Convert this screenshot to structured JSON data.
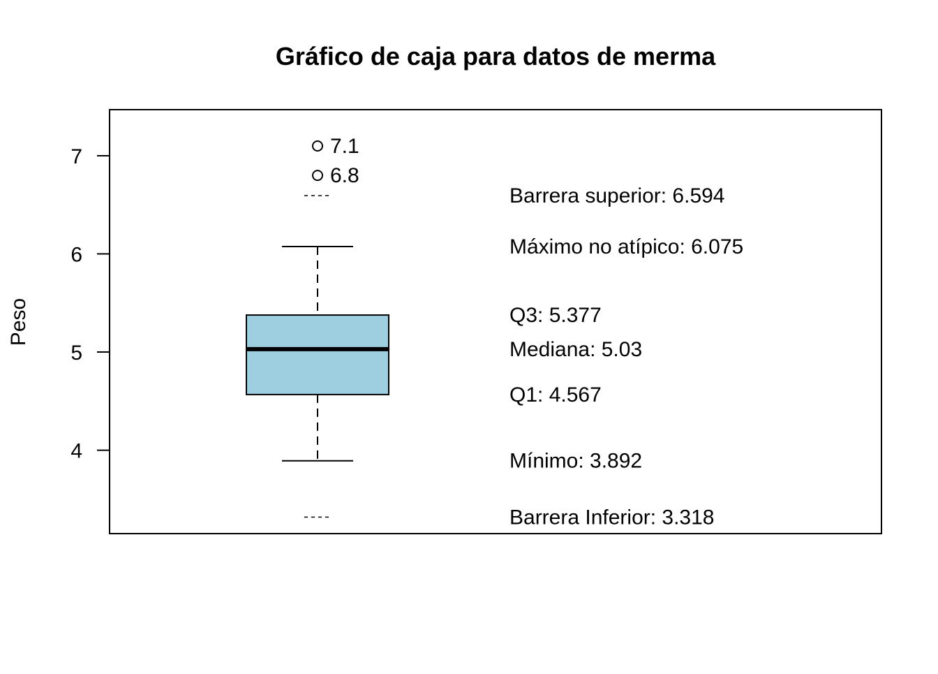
{
  "chart_data": {
    "type": "box",
    "title": "Gráfico de caja para datos de merma",
    "xlabel": "",
    "ylabel": "Peso",
    "ylim": [
      3.15,
      7.47
    ],
    "yticks": [
      4,
      5,
      6,
      7
    ],
    "ytick_labels": [
      "4",
      "5",
      "6",
      "7"
    ],
    "grid": false,
    "box": {
      "min": 3.892,
      "q1": 4.567,
      "median": 5.03,
      "q3": 5.377,
      "max": 6.075,
      "lower_fence": 3.318,
      "upper_fence": 6.594,
      "fill_color": "#9ecfe0"
    },
    "outliers": [
      {
        "value": 7.1,
        "label": "7.1"
      },
      {
        "value": 6.8,
        "label": "6.8"
      }
    ],
    "annotations": [
      {
        "key": "upper_fence",
        "text": "Barrera superior: 6.594",
        "value": 6.594
      },
      {
        "key": "max",
        "text": "Máximo no atípico: 6.075",
        "value": 6.075
      },
      {
        "key": "q3",
        "text": "Q3: 5.377",
        "value": 5.377
      },
      {
        "key": "median",
        "text": "Mediana: 5.03",
        "value": 5.03
      },
      {
        "key": "q1",
        "text": "Q1: 4.567",
        "value": 4.567
      },
      {
        "key": "min",
        "text": "Mínimo: 3.892",
        "value": 3.892
      },
      {
        "key": "lower_fence",
        "text": "Barrera Inferior: 3.318",
        "value": 3.318
      }
    ]
  }
}
